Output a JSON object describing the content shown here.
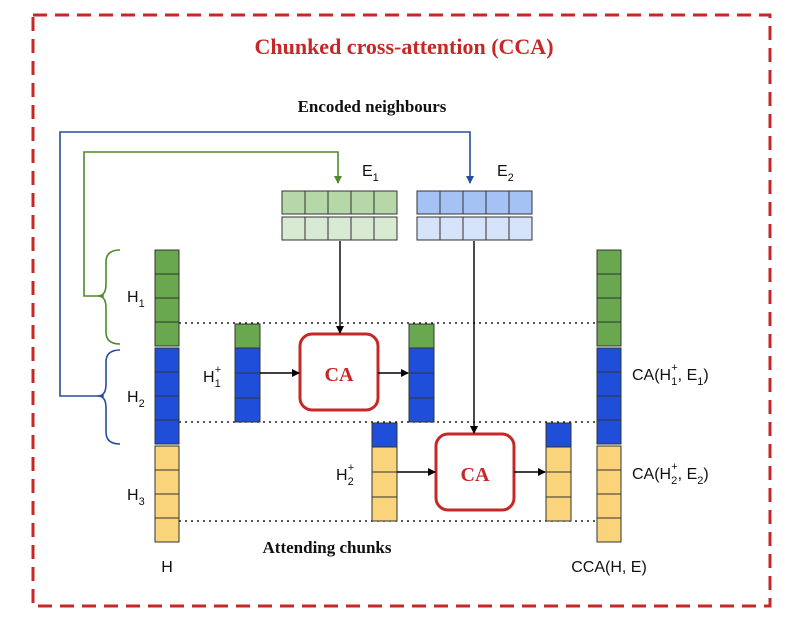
{
  "title": "Chunked cross-attention (CCA)",
  "encoded_label": "Encoded neighbours",
  "attending_label": "Attending chunks",
  "input_label": "H",
  "output_label": "CCA(H, E)",
  "chunks": {
    "h1": {
      "base": "H",
      "sub": "1"
    },
    "h2": {
      "base": "H",
      "sub": "2"
    },
    "h3": {
      "base": "H",
      "sub": "3"
    }
  },
  "neighbours": {
    "e1": {
      "base": "E",
      "sub": "1"
    },
    "e2": {
      "base": "E",
      "sub": "2"
    }
  },
  "plus_labels": {
    "h1p": {
      "base": "H",
      "sub": "1",
      "sup": "+"
    },
    "h2p": {
      "base": "H",
      "sub": "2",
      "sup": "+"
    }
  },
  "ca_block_label": "CA",
  "outputs": {
    "o1": {
      "pre": "CA(H",
      "sub1": "1",
      "sup": "+",
      "mid": ", E",
      "sub2": "1",
      "post": ")"
    },
    "o2": {
      "pre": "CA(H",
      "sub1": "2",
      "sup": "+",
      "mid": ", E",
      "sub2": "2",
      "post": ")"
    }
  },
  "colors": {
    "border_red": "#c62828",
    "green": "#6aa84f",
    "light_green": "#d9ead3",
    "mid_green": "#b6d7a8",
    "blue": "#1f4fd8",
    "light_blue": "#d5e3fb",
    "mid_blue": "#a4c2f4",
    "yellow": "#f9d47a",
    "arrow_green": "#4f8a2b",
    "arrow_blue": "#274e9c"
  }
}
